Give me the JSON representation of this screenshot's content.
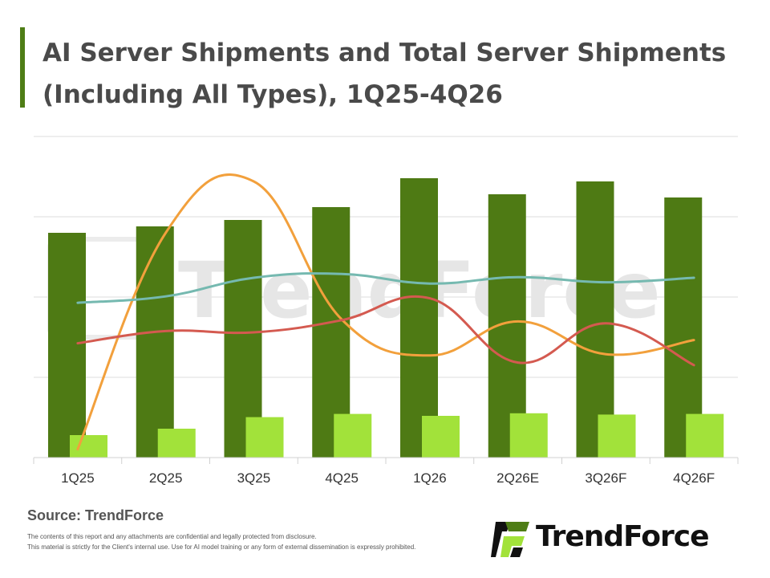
{
  "header": {
    "title": "AI Server Shipments and Total Server Shipments (Including All Types), 1Q25-4Q26"
  },
  "footer": {
    "source": "Source: TrendForce",
    "disclaimer_1": "The contents of this report and any attachments are confidential and legally protected from disclosure.",
    "disclaimer_2": "This material is strictly for the Client's internal use. Use for AI model training or any form of external dissemination is expressly prohibited.",
    "logo_text": "TrendForce",
    "watermark_text": "TrendForce"
  },
  "colors": {
    "dark_bar": "#4e7a14",
    "light_bar": "#a2e23a",
    "orange_line": "#f2a03c",
    "teal_line": "#75b9b0",
    "red_line": "#d45a50",
    "grid": "#dedede",
    "logo_green": "#4e7d16",
    "logo_light": "#a2e23a"
  },
  "chart_data": {
    "type": "bar",
    "categories": [
      "1Q25",
      "2Q25",
      "3Q25",
      "4Q25",
      "1Q26",
      "2Q26E",
      "3Q26F",
      "4Q26F"
    ],
    "ylim": [
      0,
      100
    ],
    "grid": true,
    "legend": "none",
    "bar_series": [
      {
        "values": [
          70,
          72,
          74,
          78,
          87,
          82,
          86,
          81
        ],
        "color": "#4e7a14"
      },
      {
        "values": [
          7,
          9,
          12.6,
          13.6,
          13,
          13.8,
          13.4,
          13.6
        ],
        "color": "#a2e23a"
      }
    ],
    "line_series": [
      {
        "values": [
          2.6,
          70,
          86,
          43,
          31.8,
          42.4,
          32.2,
          36.6
        ],
        "color": "#f2a03c"
      },
      {
        "values": [
          48.2,
          50.2,
          56,
          57.2,
          54.2,
          56.2,
          54.6,
          56
        ],
        "color": "#75b9b0"
      },
      {
        "values": [
          35.6,
          39.4,
          39,
          42.8,
          49.6,
          29.6,
          41.8,
          28.8
        ],
        "color": "#d45a50"
      }
    ]
  }
}
